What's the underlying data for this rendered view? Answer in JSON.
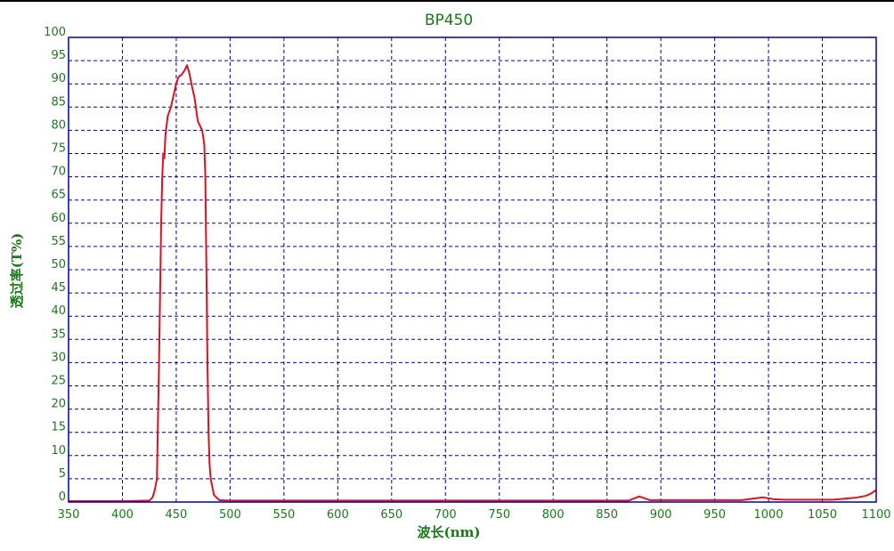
{
  "chart_data": {
    "type": "line",
    "title": "BP450",
    "xlabel": "波长(nm)",
    "ylabel": "透过率(T%)",
    "xlim": [
      350,
      1100
    ],
    "ylim": [
      0,
      100
    ],
    "grid": true,
    "x_ticks": [
      "350",
      "400",
      "450",
      "500",
      "550",
      "600",
      "650",
      "700",
      "750",
      "800",
      "850",
      "900",
      "950",
      "1000",
      "1050",
      "1100"
    ],
    "y_ticks": [
      "0",
      "5",
      "10",
      "15",
      "20",
      "25",
      "30",
      "35",
      "40",
      "45",
      "50",
      "55",
      "60",
      "65",
      "70",
      "75",
      "80",
      "85",
      "90",
      "95",
      "100"
    ],
    "colors": {
      "line": "#e01020",
      "grid": "#00009a",
      "text": "#1a7a1a",
      "frame": "#0000a0"
    },
    "series": [
      {
        "x": [
          350,
          400,
          425,
          428,
          430,
          432,
          434,
          436,
          437,
          438,
          439,
          440,
          442,
          445,
          448,
          450,
          452,
          455,
          458,
          460,
          462,
          465,
          467,
          470,
          472,
          474,
          476,
          477,
          478,
          479,
          480,
          481,
          482,
          485,
          490,
          500,
          540,
          600,
          650,
          700,
          800,
          870,
          880,
          890,
          975,
          985,
          995,
          1005,
          1015,
          1060,
          1080,
          1090,
          1095,
          1100
        ],
        "y": [
          0.2,
          0.2,
          0.3,
          1,
          2.5,
          5,
          30,
          60,
          70,
          75,
          74,
          79,
          83,
          85,
          88,
          90,
          91.5,
          92,
          93,
          94,
          92.5,
          89,
          87,
          82,
          81,
          80,
          77,
          70,
          50,
          30,
          15,
          8,
          5,
          1.5,
          0.4,
          0.3,
          0.3,
          0.3,
          0.3,
          0.3,
          0.3,
          0.3,
          1.2,
          0.4,
          0.4,
          0.7,
          1.0,
          0.6,
          0.5,
          0.5,
          0.9,
          1.3,
          1.8,
          2.6
        ]
      }
    ]
  }
}
